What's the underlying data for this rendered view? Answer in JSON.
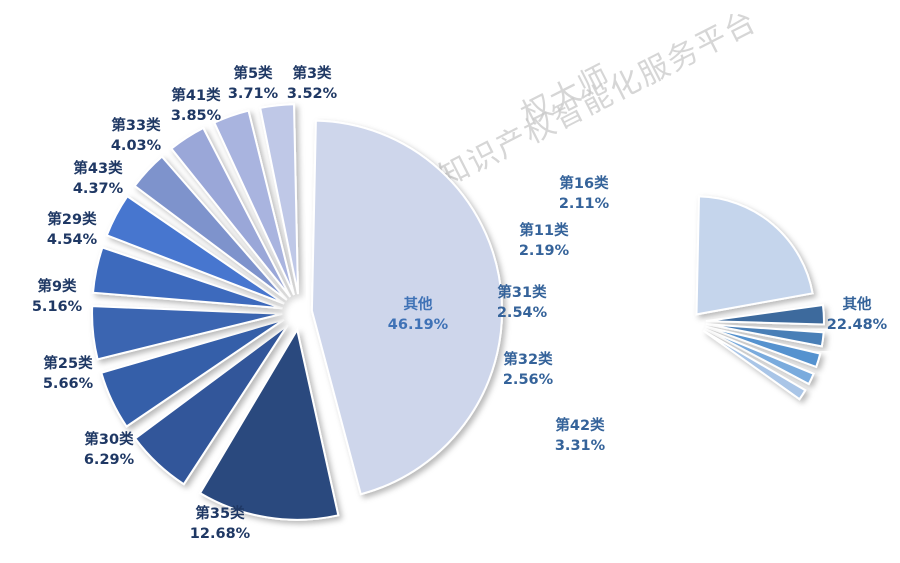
{
  "watermark": {
    "line1": "权大师",
    "line2": "权大师+知识产权智能化服务平台"
  },
  "chart_data": [
    {
      "type": "pie",
      "categories": [
        "其他",
        "第35类",
        "第30类",
        "第25类",
        "第9类",
        "第29类",
        "第43类",
        "第33类",
        "第41类",
        "第5类",
        "第3类"
      ],
      "values": [
        46.19,
        12.68,
        6.29,
        5.66,
        5.16,
        4.54,
        4.37,
        4.03,
        3.85,
        3.71,
        3.52
      ],
      "value_labels": [
        "46.19%",
        "12.68%",
        "6.29%",
        "5.66%",
        "5.16%",
        "4.54%",
        "4.37%",
        "4.03%",
        "3.85%",
        "3.71%",
        "3.52%"
      ],
      "colors": [
        "#ced6eb",
        "#2c4a7e",
        "#33579a",
        "#355ea9",
        "#3b65b1",
        "#3e6bbd",
        "#4776cf",
        "#7e93cc",
        "#9aa7d8",
        "#a9b4df",
        "#bfc8e7"
      ],
      "label_colors": [
        "#3f72b6",
        "#1f3864",
        "#1f3864",
        "#1f3864",
        "#1f3864",
        "#1f3864",
        "#1f3864",
        "#1f3864",
        "#1f3864",
        "#1f3864",
        "#1f3864"
      ]
    },
    {
      "type": "pie",
      "categories": [
        "其他",
        "第42类",
        "第32类",
        "第31类",
        "第11类",
        "第16类"
      ],
      "values": [
        22.48,
        3.31,
        2.56,
        2.54,
        2.19,
        2.11
      ],
      "value_labels": [
        "22.48%",
        "3.31%",
        "2.56%",
        "2.54%",
        "2.19%",
        "2.11%"
      ],
      "colors": [
        "#c5d5ec",
        "#3c6b9d",
        "#4a7fb7",
        "#5592cf",
        "#7aabdd",
        "#a9c5e7"
      ],
      "label_colors": [
        "#35639a",
        "#35639a",
        "#35639a",
        "#35639a",
        "#35639a",
        "#35639a"
      ]
    }
  ]
}
